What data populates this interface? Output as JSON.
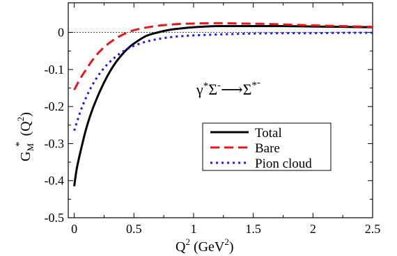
{
  "chart_data": {
    "type": "line",
    "title": "",
    "annotation": {
      "gamma": "γ",
      "star1": "*",
      "sigma1": "Σ",
      "minus1": "-",
      "arrow": "⟶",
      "sigma2": "Σ",
      "star2": "*",
      "minus2": "-"
    },
    "xlabel": {
      "main": "Q",
      "sup": "2",
      "unit_open": " (GeV",
      "unit_sup": "2",
      "unit_close": ")"
    },
    "ylabel": {
      "g": "G",
      "sub": "M",
      "star": "*",
      "open": "(Q",
      "sup": "2",
      "close": ")"
    },
    "xlim": [
      -0.05,
      2.5
    ],
    "ylim": [
      -0.5,
      0.08
    ],
    "x_ticks": [
      {
        "value": 0,
        "label": "0"
      },
      {
        "value": 0.5,
        "label": "0.5"
      },
      {
        "value": 1,
        "label": "1"
      },
      {
        "value": 1.5,
        "label": "1.5"
      },
      {
        "value": 2,
        "label": "2"
      },
      {
        "value": 2.5,
        "label": "2.5"
      }
    ],
    "y_ticks": [
      {
        "value": 0,
        "label": "0"
      },
      {
        "value": -0.1,
        "label": "-0.1"
      },
      {
        "value": -0.2,
        "label": "-0.2"
      },
      {
        "value": -0.3,
        "label": "-0.3"
      },
      {
        "value": -0.4,
        "label": "-0.4"
      },
      {
        "value": -0.5,
        "label": "-0.5"
      }
    ],
    "legend_position": "center-right",
    "zero_line": true,
    "series": [
      {
        "name": "Total",
        "color": "#000000",
        "dash": "solid",
        "x": [
          0.0,
          0.02,
          0.05,
          0.1,
          0.15,
          0.2,
          0.25,
          0.3,
          0.35,
          0.4,
          0.45,
          0.5,
          0.6,
          0.7,
          0.8,
          0.9,
          1.0,
          1.1,
          1.2,
          1.3,
          1.5,
          1.75,
          2.0,
          2.25,
          2.5
        ],
        "y": [
          -0.415,
          -0.37,
          -0.325,
          -0.26,
          -0.21,
          -0.17,
          -0.135,
          -0.105,
          -0.08,
          -0.06,
          -0.043,
          -0.03,
          -0.01,
          0.0,
          0.007,
          0.011,
          0.014,
          0.016,
          0.017,
          0.017,
          0.017,
          0.017,
          0.016,
          0.015,
          0.014
        ]
      },
      {
        "name": "Bare",
        "color": "#e8161b",
        "dash": "long",
        "x": [
          0.0,
          0.05,
          0.1,
          0.15,
          0.2,
          0.25,
          0.3,
          0.35,
          0.4,
          0.45,
          0.5,
          0.6,
          0.7,
          0.8,
          0.9,
          1.0,
          1.2,
          1.4,
          1.6,
          1.8,
          2.0,
          2.25,
          2.5
        ],
        "y": [
          -0.155,
          -0.125,
          -0.1,
          -0.076,
          -0.056,
          -0.04,
          -0.027,
          -0.016,
          -0.007,
          0.0,
          0.006,
          0.013,
          0.018,
          0.021,
          0.023,
          0.024,
          0.025,
          0.024,
          0.023,
          0.021,
          0.019,
          0.017,
          0.015
        ]
      },
      {
        "name": "Pion cloud",
        "color": "#1a1aff",
        "dash": "dot",
        "x": [
          0.0,
          0.05,
          0.1,
          0.15,
          0.2,
          0.25,
          0.3,
          0.35,
          0.4,
          0.45,
          0.5,
          0.6,
          0.7,
          0.8,
          0.9,
          1.0,
          1.25,
          1.5,
          1.75,
          2.0,
          2.25,
          2.5
        ],
        "y": [
          -0.265,
          -0.215,
          -0.175,
          -0.143,
          -0.117,
          -0.096,
          -0.079,
          -0.065,
          -0.053,
          -0.044,
          -0.036,
          -0.025,
          -0.018,
          -0.013,
          -0.01,
          -0.008,
          -0.005,
          -0.003,
          -0.002,
          -0.002,
          -0.001,
          -0.001
        ]
      }
    ]
  }
}
